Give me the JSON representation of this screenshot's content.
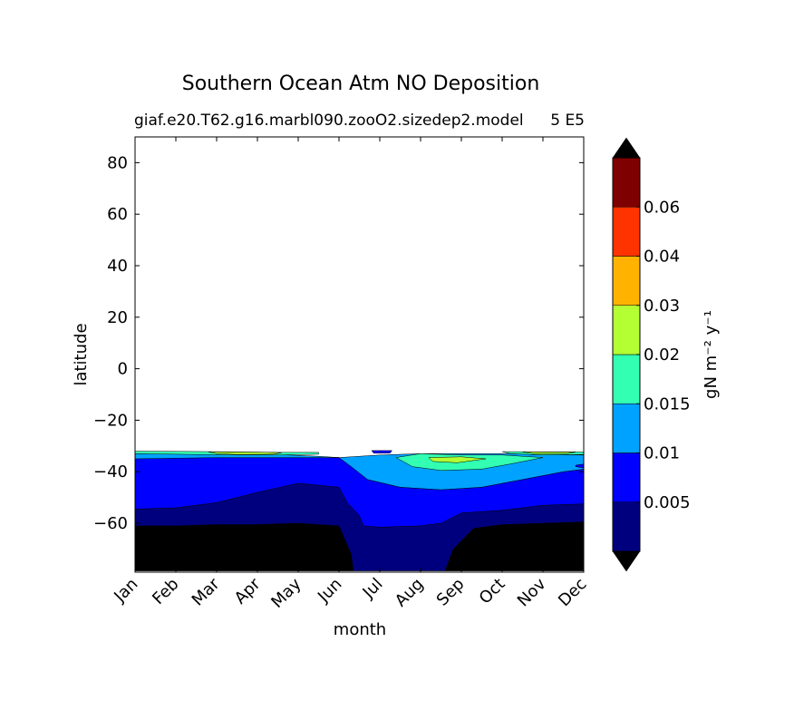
{
  "chart_data": {
    "type": "filled-contour",
    "title": "Southern Ocean Atm NO Deposition",
    "subtitle_left": "giaf.e20.T62.g16.marbl090.zooO2.sizedep2.model",
    "subtitle_right": "5 E5",
    "xlabel": "month",
    "ylabel": "latitude",
    "x_ticks": [
      "Jan",
      "Feb",
      "Mar",
      "Apr",
      "May",
      "Jun",
      "Jul",
      "Aug",
      "Sep",
      "Oct",
      "Nov",
      "Dec"
    ],
    "x_range": [
      0,
      11
    ],
    "ylim": [
      -79,
      90
    ],
    "y_ticks": [
      80,
      60,
      40,
      20,
      0,
      -20,
      -40,
      -60
    ],
    "y_tick_labels": [
      "80",
      "60",
      "40",
      "20",
      "0",
      "−20",
      "−40",
      "−60"
    ],
    "data_domain_lat": [
      -78,
      -31.5
    ],
    "colorbar": {
      "label": "gN m⁻² y⁻¹",
      "extend": "both",
      "levels": [
        0.0,
        0.005,
        0.01,
        0.015,
        0.02,
        0.03,
        0.04,
        0.06,
        0.07
      ],
      "colors": [
        "#00007f",
        "#0000ff",
        "#00a2ff",
        "#33ffb3",
        "#b3ff33",
        "#ffb300",
        "#ff3300",
        "#7f0000"
      ],
      "under_color": "#000000",
      "over_color": "#000000",
      "tick_values": [
        0.005,
        0.01,
        0.015,
        0.02,
        0.03,
        0.04,
        0.06
      ],
      "tick_labels": [
        "0.005",
        "0.01",
        "0.015",
        "0.02",
        "0.03",
        "0.04",
        "0.06"
      ]
    },
    "contour_regions": [
      {
        "name": "land-below-zero",
        "level_index": -1,
        "points": [
          [
            0,
            -78.5
          ],
          [
            0,
            -61
          ],
          [
            1,
            -61
          ],
          [
            2,
            -60.5
          ],
          [
            3,
            -60.5
          ],
          [
            4,
            -60
          ],
          [
            5,
            -61
          ],
          [
            5.3,
            -72
          ],
          [
            5.35,
            -78.5
          ]
        ]
      },
      {
        "name": "land-below-zero-east",
        "level_index": -1,
        "points": [
          [
            7.6,
            -78.5
          ],
          [
            7.8,
            -70
          ],
          [
            8.3,
            -62
          ],
          [
            9,
            -60.5
          ],
          [
            10,
            -60
          ],
          [
            11,
            -59.5
          ],
          [
            11,
            -78.5
          ]
        ]
      },
      {
        "name": "band-0-0.005",
        "level_index": 0,
        "points": [
          [
            0,
            -61
          ],
          [
            0,
            -54.5
          ],
          [
            1,
            -54
          ],
          [
            2,
            -52
          ],
          [
            3,
            -48
          ],
          [
            4,
            -44.5
          ],
          [
            5,
            -46
          ],
          [
            5.2,
            -52
          ],
          [
            5.5,
            -57
          ],
          [
            5.6,
            -61
          ],
          [
            6,
            -61.5
          ],
          [
            7,
            -61
          ],
          [
            7.5,
            -60
          ],
          [
            8,
            -56
          ],
          [
            9,
            -55
          ],
          [
            10,
            -53
          ],
          [
            11,
            -52.5
          ],
          [
            11,
            -59.5
          ],
          [
            10,
            -60
          ],
          [
            9,
            -60.5
          ],
          [
            8.3,
            -62
          ],
          [
            7.8,
            -70
          ],
          [
            7.6,
            -78.5
          ],
          [
            5.35,
            -78.5
          ],
          [
            5.3,
            -72
          ],
          [
            5,
            -61
          ],
          [
            4,
            -60
          ],
          [
            3,
            -60.5
          ],
          [
            2,
            -60.5
          ],
          [
            1,
            -61
          ]
        ]
      },
      {
        "name": "band-0.005-0.01",
        "level_index": 1,
        "points": [
          [
            0,
            -54.5
          ],
          [
            0,
            -35
          ],
          [
            2,
            -34.5
          ],
          [
            4,
            -34.5
          ],
          [
            5,
            -34.5
          ],
          [
            5.3,
            -38
          ],
          [
            5.7,
            -43
          ],
          [
            6.5,
            -46
          ],
          [
            7.5,
            -47
          ],
          [
            8.5,
            -46
          ],
          [
            9.5,
            -43
          ],
          [
            10.5,
            -40
          ],
          [
            11,
            -39
          ],
          [
            11,
            -52.5
          ],
          [
            10,
            -53
          ],
          [
            9,
            -55
          ],
          [
            8,
            -56
          ],
          [
            7.5,
            -60
          ],
          [
            7,
            -61
          ],
          [
            6,
            -61.5
          ],
          [
            5.6,
            -61
          ],
          [
            5.5,
            -57
          ],
          [
            5.2,
            -52
          ],
          [
            5,
            -46
          ],
          [
            4,
            -44.5
          ],
          [
            3,
            -48
          ],
          [
            2,
            -52
          ],
          [
            1,
            -54
          ]
        ]
      },
      {
        "name": "band-0.01-0.015",
        "level_index": 2,
        "points": [
          [
            0,
            -35
          ],
          [
            0,
            -33
          ],
          [
            3,
            -33
          ],
          [
            4.5,
            -34
          ],
          [
            5,
            -34.5
          ],
          [
            6,
            -33.5
          ],
          [
            7,
            -33
          ],
          [
            9,
            -33
          ],
          [
            11,
            -33.5
          ],
          [
            11,
            -39
          ],
          [
            10.5,
            -40
          ],
          [
            9.5,
            -43
          ],
          [
            8.5,
            -46
          ],
          [
            7.5,
            -47
          ],
          [
            6.5,
            -46
          ],
          [
            5.7,
            -43
          ],
          [
            5.3,
            -38
          ],
          [
            5,
            -34.5
          ],
          [
            4,
            -34.5
          ],
          [
            2,
            -34.5
          ]
        ]
      },
      {
        "name": "band-0.015-0.02",
        "level_index": 3,
        "points": [
          [
            6.4,
            -34.5
          ],
          [
            7,
            -33
          ],
          [
            8,
            -33.5
          ],
          [
            9,
            -33.5
          ],
          [
            10,
            -34.5
          ],
          [
            9.2,
            -37
          ],
          [
            8.5,
            -39
          ],
          [
            7.5,
            -39.5
          ],
          [
            6.8,
            -38
          ]
        ]
      },
      {
        "name": "band-0.015-0.02-top",
        "level_index": 3,
        "points": [
          [
            0,
            -32
          ],
          [
            2,
            -32.2
          ],
          [
            3.5,
            -32.5
          ],
          [
            4.5,
            -32.5
          ],
          [
            4.5,
            -33.2
          ],
          [
            3.5,
            -33.5
          ],
          [
            2,
            -33.4
          ],
          [
            0,
            -33
          ]
        ]
      },
      {
        "name": "band-0.015-0.02-east",
        "level_index": 3,
        "points": [
          [
            9,
            -32.2
          ],
          [
            11,
            -32.3
          ],
          [
            11,
            -33.3
          ],
          [
            10,
            -33.5
          ],
          [
            9.2,
            -33
          ]
        ]
      },
      {
        "name": "band-0.02-0.03",
        "level_index": 4,
        "points": [
          [
            7.2,
            -34.5
          ],
          [
            8,
            -34.2
          ],
          [
            8.6,
            -35
          ],
          [
            7.9,
            -36.5
          ],
          [
            7.3,
            -36
          ]
        ]
      },
      {
        "name": "band-0.02-0.03-top",
        "level_index": 4,
        "points": [
          [
            1.8,
            -32.3
          ],
          [
            3,
            -32.4
          ],
          [
            3.6,
            -32.6
          ],
          [
            3.4,
            -33.2
          ],
          [
            2.5,
            -33.3
          ],
          [
            2,
            -33
          ]
        ]
      },
      {
        "name": "band-0.02-0.03-east",
        "level_index": 4,
        "points": [
          [
            9.5,
            -32.3
          ],
          [
            10.8,
            -32.4
          ],
          [
            10.6,
            -33
          ],
          [
            9.8,
            -33.1
          ]
        ]
      },
      {
        "name": "band-0.005-0.01-jul-notch",
        "level_index": 1,
        "points": [
          [
            5.8,
            -31.8
          ],
          [
            6.3,
            -31.8
          ],
          [
            6.25,
            -32.8
          ],
          [
            5.85,
            -32.8
          ]
        ]
      },
      {
        "name": "band-0.005-0.01-dec-notch",
        "level_index": 1,
        "points": [
          [
            10.8,
            -37.5
          ],
          [
            11,
            -37
          ],
          [
            11,
            -38.5
          ],
          [
            10.8,
            -38
          ]
        ]
      }
    ]
  }
}
